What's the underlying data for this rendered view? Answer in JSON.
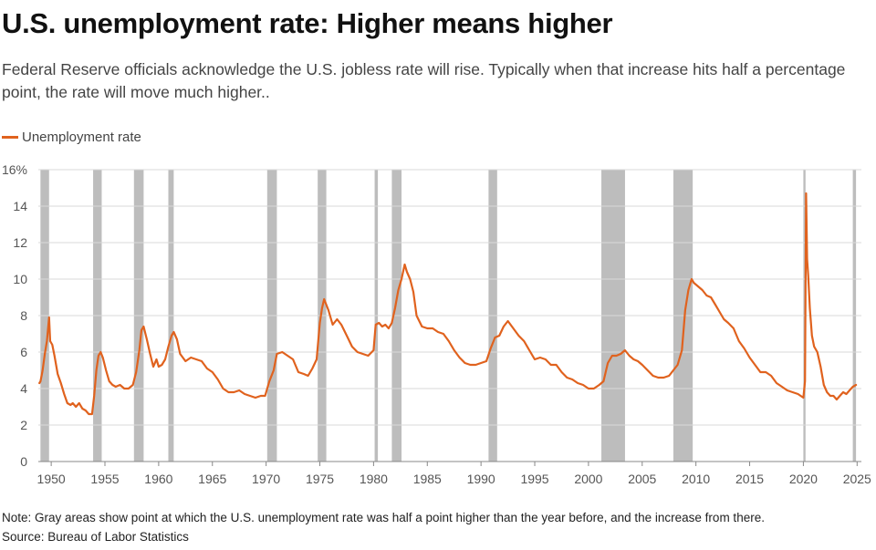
{
  "title": "U.S. unemployment rate: Higher means higher",
  "subtitle": "Federal Reserve officials acknowledge the U.S. jobless rate will rise. Typically when that increase hits half a percentage point, the rate will move much higher..",
  "legend_label": "Unemployment rate",
  "note": "Note: Gray areas show point at which the U.S. unemployment rate was half a point higher than the year before, and the increase from there.",
  "source": "Source: Bureau of Labor Statistics",
  "colors": {
    "series": "#e0621e",
    "shade": "#bdbdbd",
    "grid": "#d9d9d9",
    "axis": "#888888"
  },
  "chart_data": {
    "type": "line",
    "xlabel": "",
    "ylabel": "",
    "xlim": [
      1948.8,
      2025.4
    ],
    "ylim": [
      0,
      16
    ],
    "grid": true,
    "legend_position": "top-left",
    "x_ticks": [
      {
        "value": 1950,
        "label": "1950"
      },
      {
        "value": 1955,
        "label": "1955"
      },
      {
        "value": 1960,
        "label": "1960"
      },
      {
        "value": 1965,
        "label": "1965"
      },
      {
        "value": 1970,
        "label": "1970"
      },
      {
        "value": 1975,
        "label": "1975"
      },
      {
        "value": 1980,
        "label": "1980"
      },
      {
        "value": 1985,
        "label": "1985"
      },
      {
        "value": 1990,
        "label": "1990"
      },
      {
        "value": 1995,
        "label": "1995"
      },
      {
        "value": 2000,
        "label": "2000"
      },
      {
        "value": 2005,
        "label": "2005"
      },
      {
        "value": 2010,
        "label": "2010"
      },
      {
        "value": 2015,
        "label": "2015"
      },
      {
        "value": 2020,
        "label": "2020"
      },
      {
        "value": 2025,
        "label": "2025"
      }
    ],
    "y_ticks": [
      {
        "value": 0,
        "label": "0"
      },
      {
        "value": 2,
        "label": "2"
      },
      {
        "value": 4,
        "label": "4"
      },
      {
        "value": 6,
        "label": "6"
      },
      {
        "value": 8,
        "label": "8"
      },
      {
        "value": 10,
        "label": "10"
      },
      {
        "value": 12,
        "label": "12"
      },
      {
        "value": 14,
        "label": "14"
      },
      {
        "value": 16,
        "label": "16%"
      }
    ],
    "shaded_periods": [
      [
        1949.0,
        1949.8
      ],
      [
        1953.9,
        1954.7
      ],
      [
        1957.7,
        1958.6
      ],
      [
        1960.9,
        1961.4
      ],
      [
        1970.1,
        1971.0
      ],
      [
        1974.8,
        1975.6
      ],
      [
        1980.1,
        1980.4
      ],
      [
        1981.7,
        1982.6
      ],
      [
        1990.7,
        1991.5
      ],
      [
        2001.2,
        2003.4
      ],
      [
        2007.9,
        2009.7
      ],
      [
        2020.0,
        2020.2
      ],
      [
        2024.6,
        2024.9
      ]
    ],
    "series": [
      {
        "name": "Unemployment rate",
        "x": [
          1948.9,
          1949.0,
          1949.2,
          1949.4,
          1949.6,
          1949.8,
          1949.9,
          1950.1,
          1950.3,
          1950.6,
          1950.9,
          1951.2,
          1951.5,
          1951.8,
          1952.0,
          1952.3,
          1952.6,
          1952.9,
          1953.2,
          1953.5,
          1953.8,
          1954.0,
          1954.2,
          1954.4,
          1954.6,
          1954.8,
          1955.1,
          1955.4,
          1955.7,
          1956.0,
          1956.4,
          1956.8,
          1957.2,
          1957.6,
          1957.9,
          1958.2,
          1958.4,
          1958.6,
          1958.9,
          1959.2,
          1959.5,
          1959.8,
          1960.0,
          1960.3,
          1960.6,
          1960.9,
          1961.2,
          1961.4,
          1961.7,
          1962.0,
          1962.5,
          1963.0,
          1963.5,
          1964.0,
          1964.5,
          1965.0,
          1965.5,
          1966.0,
          1966.5,
          1967.0,
          1967.5,
          1968.0,
          1968.5,
          1969.0,
          1969.5,
          1969.9,
          1970.3,
          1970.7,
          1971.0,
          1971.5,
          1972.0,
          1972.5,
          1973.0,
          1973.5,
          1973.9,
          1974.3,
          1974.7,
          1975.0,
          1975.2,
          1975.4,
          1975.8,
          1976.2,
          1976.6,
          1977.0,
          1977.5,
          1978.0,
          1978.5,
          1979.0,
          1979.5,
          1980.0,
          1980.2,
          1980.5,
          1980.8,
          1981.1,
          1981.4,
          1981.7,
          1982.0,
          1982.3,
          1982.6,
          1982.9,
          1983.1,
          1983.4,
          1983.7,
          1984.0,
          1984.5,
          1985.0,
          1985.5,
          1986.0,
          1986.5,
          1987.0,
          1987.5,
          1988.0,
          1988.5,
          1989.0,
          1989.5,
          1990.0,
          1990.5,
          1990.9,
          1991.3,
          1991.7,
          1992.1,
          1992.5,
          1993.0,
          1993.5,
          1994.0,
          1994.5,
          1995.0,
          1995.5,
          1996.0,
          1996.5,
          1997.0,
          1997.5,
          1998.0,
          1998.5,
          1999.0,
          1999.5,
          2000.0,
          2000.5,
          2001.0,
          2001.4,
          2001.8,
          2002.2,
          2002.6,
          2003.0,
          2003.4,
          2003.8,
          2004.2,
          2004.6,
          2005.0,
          2005.5,
          2006.0,
          2006.5,
          2007.0,
          2007.5,
          2007.9,
          2008.3,
          2008.7,
          2009.0,
          2009.3,
          2009.6,
          2009.8,
          2010.2,
          2010.6,
          2011.0,
          2011.4,
          2011.8,
          2012.2,
          2012.6,
          2013.0,
          2013.5,
          2014.0,
          2014.5,
          2015.0,
          2015.5,
          2016.0,
          2016.5,
          2017.0,
          2017.5,
          2018.0,
          2018.5,
          2019.0,
          2019.5,
          2020.0,
          2020.15,
          2020.25,
          2020.35,
          2020.45,
          2020.6,
          2020.8,
          2021.0,
          2021.3,
          2021.6,
          2021.9,
          2022.2,
          2022.5,
          2022.8,
          2023.1,
          2023.4,
          2023.7,
          2024.0,
          2024.3,
          2024.6,
          2024.9
        ],
        "y": [
          4.3,
          4.4,
          5.0,
          5.9,
          6.6,
          7.9,
          6.6,
          6.4,
          5.8,
          4.8,
          4.3,
          3.7,
          3.2,
          3.1,
          3.2,
          3.0,
          3.2,
          2.9,
          2.8,
          2.6,
          2.6,
          3.6,
          5.0,
          5.8,
          6.0,
          5.7,
          5.0,
          4.4,
          4.2,
          4.1,
          4.2,
          4.0,
          4.0,
          4.2,
          4.9,
          6.1,
          7.2,
          7.4,
          6.7,
          5.9,
          5.2,
          5.6,
          5.2,
          5.3,
          5.6,
          6.3,
          6.9,
          7.1,
          6.7,
          5.9,
          5.5,
          5.7,
          5.6,
          5.5,
          5.1,
          4.9,
          4.5,
          4.0,
          3.8,
          3.8,
          3.9,
          3.7,
          3.6,
          3.5,
          3.6,
          3.6,
          4.4,
          5.0,
          5.9,
          6.0,
          5.8,
          5.6,
          4.9,
          4.8,
          4.7,
          5.1,
          5.6,
          7.6,
          8.4,
          8.9,
          8.3,
          7.5,
          7.8,
          7.5,
          6.9,
          6.3,
          6.0,
          5.9,
          5.8,
          6.1,
          7.5,
          7.6,
          7.4,
          7.5,
          7.3,
          7.6,
          8.4,
          9.4,
          10.0,
          10.8,
          10.4,
          10.0,
          9.3,
          8.0,
          7.4,
          7.3,
          7.3,
          7.1,
          7.0,
          6.6,
          6.1,
          5.7,
          5.4,
          5.3,
          5.3,
          5.4,
          5.5,
          6.2,
          6.8,
          6.9,
          7.4,
          7.7,
          7.3,
          6.9,
          6.6,
          6.1,
          5.6,
          5.7,
          5.6,
          5.3,
          5.3,
          4.9,
          4.6,
          4.5,
          4.3,
          4.2,
          4.0,
          4.0,
          4.2,
          4.4,
          5.4,
          5.8,
          5.8,
          5.9,
          6.1,
          5.8,
          5.6,
          5.5,
          5.3,
          5.0,
          4.7,
          4.6,
          4.6,
          4.7,
          5.0,
          5.3,
          6.1,
          8.3,
          9.4,
          10.0,
          9.8,
          9.6,
          9.4,
          9.1,
          9.0,
          8.6,
          8.2,
          7.8,
          7.6,
          7.3,
          6.6,
          6.2,
          5.7,
          5.3,
          4.9,
          4.9,
          4.7,
          4.3,
          4.1,
          3.9,
          3.8,
          3.7,
          3.5,
          4.4,
          14.7,
          11.1,
          10.2,
          8.4,
          6.9,
          6.3,
          6.0,
          5.2,
          4.2,
          3.8,
          3.6,
          3.6,
          3.4,
          3.6,
          3.8,
          3.7,
          3.9,
          4.1,
          4.2
        ]
      }
    ]
  }
}
